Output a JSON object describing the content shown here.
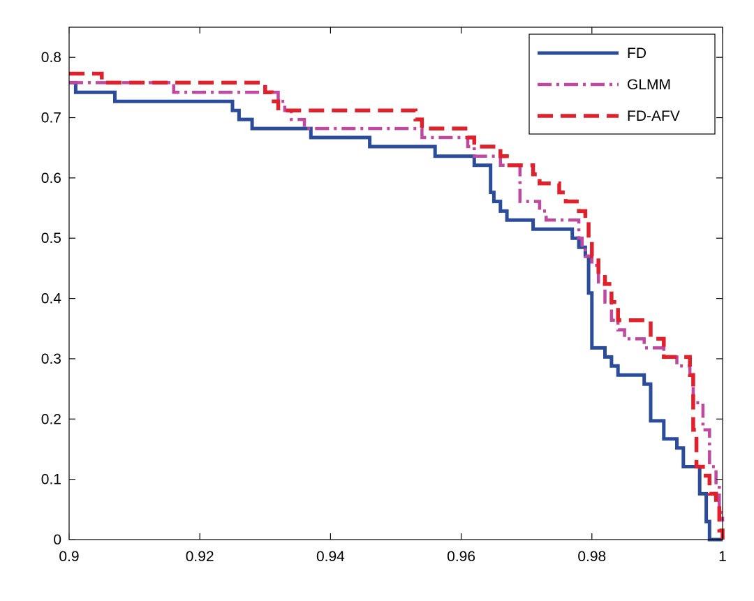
{
  "chart_data": {
    "type": "line",
    "title": "",
    "xlabel": "",
    "ylabel": "",
    "xlim": [
      0.9,
      1.0
    ],
    "ylim": [
      0,
      0.85
    ],
    "xticks": [
      0.9,
      0.92,
      0.94,
      0.96,
      0.98,
      1.0
    ],
    "xtick_labels": [
      "0.9",
      "0.92",
      "0.94",
      "0.96",
      "0.98",
      "1"
    ],
    "yticks": [
      0,
      0.1,
      0.2,
      0.3,
      0.4,
      0.5,
      0.6,
      0.7,
      0.8
    ],
    "ytick_labels": [
      "0",
      "0.1",
      "0.2",
      "0.3",
      "0.4",
      "0.5",
      "0.6",
      "0.7",
      "0.8"
    ],
    "grid": false,
    "legend": "top-right",
    "step": true,
    "series": [
      {
        "name": "FD",
        "color": "#2b4c9b",
        "style": "solid",
        "points": [
          [
            0.9,
            0.758
          ],
          [
            0.901,
            0.742
          ],
          [
            0.907,
            0.727
          ],
          [
            0.925,
            0.712
          ],
          [
            0.926,
            0.697
          ],
          [
            0.928,
            0.682
          ],
          [
            0.937,
            0.667
          ],
          [
            0.946,
            0.652
          ],
          [
            0.956,
            0.636
          ],
          [
            0.962,
            0.621
          ],
          [
            0.9645,
            0.576
          ],
          [
            0.965,
            0.561
          ],
          [
            0.966,
            0.545
          ],
          [
            0.967,
            0.53
          ],
          [
            0.971,
            0.515
          ],
          [
            0.977,
            0.5
          ],
          [
            0.978,
            0.485
          ],
          [
            0.979,
            0.47
          ],
          [
            0.9795,
            0.409
          ],
          [
            0.98,
            0.318
          ],
          [
            0.982,
            0.303
          ],
          [
            0.983,
            0.288
          ],
          [
            0.984,
            0.273
          ],
          [
            0.988,
            0.258
          ],
          [
            0.989,
            0.197
          ],
          [
            0.991,
            0.167
          ],
          [
            0.993,
            0.152
          ],
          [
            0.994,
            0.121
          ],
          [
            0.996,
            0.121
          ],
          [
            0.9965,
            0.076
          ],
          [
            0.997,
            0.076
          ],
          [
            0.9975,
            0.03
          ],
          [
            0.998,
            0.0
          ],
          [
            1.0,
            0.0
          ]
        ]
      },
      {
        "name": "GLMM",
        "color": "#c048a0",
        "style": "dashdot",
        "points": [
          [
            0.9,
            0.758
          ],
          [
            0.916,
            0.742
          ],
          [
            0.932,
            0.727
          ],
          [
            0.933,
            0.712
          ],
          [
            0.934,
            0.697
          ],
          [
            0.936,
            0.682
          ],
          [
            0.954,
            0.667
          ],
          [
            0.961,
            0.652
          ],
          [
            0.962,
            0.636
          ],
          [
            0.966,
            0.621
          ],
          [
            0.969,
            0.561
          ],
          [
            0.972,
            0.545
          ],
          [
            0.973,
            0.53
          ],
          [
            0.978,
            0.515
          ],
          [
            0.978,
            0.5
          ],
          [
            0.9785,
            0.485
          ],
          [
            0.979,
            0.47
          ],
          [
            0.98,
            0.455
          ],
          [
            0.981,
            0.424
          ],
          [
            0.982,
            0.394
          ],
          [
            0.983,
            0.364
          ],
          [
            0.984,
            0.348
          ],
          [
            0.985,
            0.333
          ],
          [
            0.988,
            0.318
          ],
          [
            0.991,
            0.303
          ],
          [
            0.993,
            0.288
          ],
          [
            0.995,
            0.273
          ],
          [
            0.9955,
            0.227
          ],
          [
            0.997,
            0.182
          ],
          [
            0.998,
            0.121
          ],
          [
            0.999,
            0.091
          ],
          [
            0.9995,
            0.045
          ],
          [
            1.0,
            0.03
          ]
        ]
      },
      {
        "name": "FD-AFV",
        "color": "#e0202a",
        "style": "dashed",
        "points": [
          [
            0.9,
            0.773
          ],
          [
            0.905,
            0.758
          ],
          [
            0.93,
            0.742
          ],
          [
            0.931,
            0.727
          ],
          [
            0.932,
            0.712
          ],
          [
            0.953,
            0.697
          ],
          [
            0.954,
            0.682
          ],
          [
            0.961,
            0.667
          ],
          [
            0.962,
            0.652
          ],
          [
            0.966,
            0.636
          ],
          [
            0.967,
            0.621
          ],
          [
            0.971,
            0.606
          ],
          [
            0.972,
            0.591
          ],
          [
            0.975,
            0.576
          ],
          [
            0.976,
            0.561
          ],
          [
            0.978,
            0.545
          ],
          [
            0.979,
            0.53
          ],
          [
            0.9795,
            0.5
          ],
          [
            0.98,
            0.47
          ],
          [
            0.981,
            0.439
          ],
          [
            0.982,
            0.424
          ],
          [
            0.983,
            0.394
          ],
          [
            0.984,
            0.364
          ],
          [
            0.985,
            0.364
          ],
          [
            0.989,
            0.333
          ],
          [
            0.991,
            0.303
          ],
          [
            0.995,
            0.273
          ],
          [
            0.9955,
            0.182
          ],
          [
            0.996,
            0.121
          ],
          [
            0.997,
            0.106
          ],
          [
            0.998,
            0.076
          ],
          [
            0.999,
            0.061
          ],
          [
            0.9995,
            0.015
          ],
          [
            1.0,
            0.0
          ]
        ]
      }
    ]
  }
}
